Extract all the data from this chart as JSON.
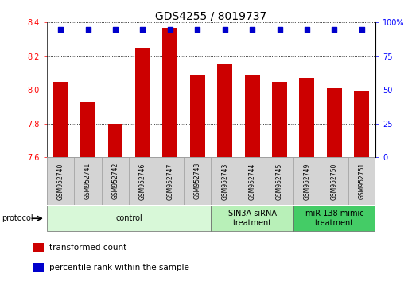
{
  "title": "GDS4255 / 8019737",
  "samples": [
    "GSM952740",
    "GSM952741",
    "GSM952742",
    "GSM952746",
    "GSM952747",
    "GSM952748",
    "GSM952743",
    "GSM952744",
    "GSM952745",
    "GSM952749",
    "GSM952750",
    "GSM952751"
  ],
  "bar_values": [
    8.05,
    7.93,
    7.8,
    8.25,
    8.37,
    8.09,
    8.15,
    8.09,
    8.05,
    8.07,
    8.01,
    7.99
  ],
  "percentile_values": [
    95,
    95,
    95,
    95,
    95,
    95,
    95,
    95,
    95,
    95,
    95,
    95
  ],
  "bar_color": "#cc0000",
  "dot_color": "#0000cc",
  "ylim_left": [
    7.6,
    8.4
  ],
  "ylim_right": [
    0,
    100
  ],
  "yticks_left": [
    7.6,
    7.8,
    8.0,
    8.2,
    8.4
  ],
  "yticks_right": [
    0,
    25,
    50,
    75,
    100
  ],
  "groups": [
    {
      "label": "control",
      "start": 0,
      "end": 6,
      "color": "#d8f8d8"
    },
    {
      "label": "SIN3A siRNA\ntreatment",
      "start": 6,
      "end": 9,
      "color": "#b8f0b8"
    },
    {
      "label": "miR-138 mimic\ntreatment",
      "start": 9,
      "end": 12,
      "color": "#44cc66"
    }
  ],
  "protocol_label": "protocol",
  "legend_items": [
    {
      "label": "transformed count",
      "color": "#cc0000"
    },
    {
      "label": "percentile rank within the sample",
      "color": "#0000cc"
    }
  ],
  "background_color": "#ffffff",
  "bar_width": 0.55,
  "dot_size": 25,
  "label_fontsize": 5.5,
  "tick_fontsize": 7,
  "title_fontsize": 10,
  "group_fontsize": 7
}
